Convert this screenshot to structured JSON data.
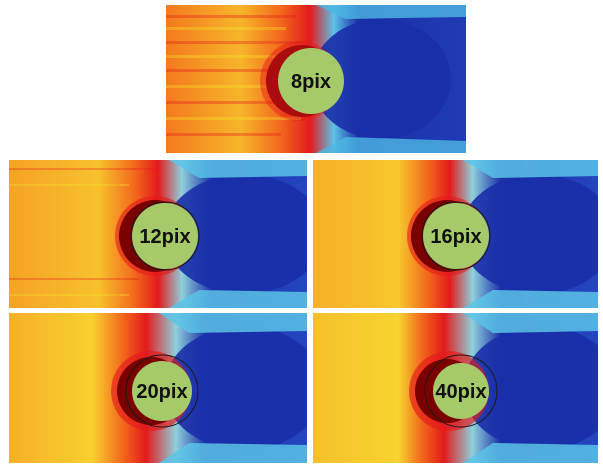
{
  "figure": {
    "panels": [
      {
        "id": "p8",
        "label": "8pix"
      },
      {
        "id": "p12",
        "label": "12pix"
      },
      {
        "id": "p16",
        "label": "16pix"
      },
      {
        "id": "p20",
        "label": "20pix"
      },
      {
        "id": "p40",
        "label": "40pix"
      }
    ],
    "colors": {
      "hot_dark": "#7a0000",
      "hot": "#e41a1c",
      "warm": "#f7931e",
      "yellow": "#f6e62a",
      "cool": "#35b6e6",
      "cold": "#1a2fa8",
      "cold_mid": "#2446c0",
      "circle_fill": "#a6c96a",
      "circle_edge": "#1a1a1a"
    }
  }
}
